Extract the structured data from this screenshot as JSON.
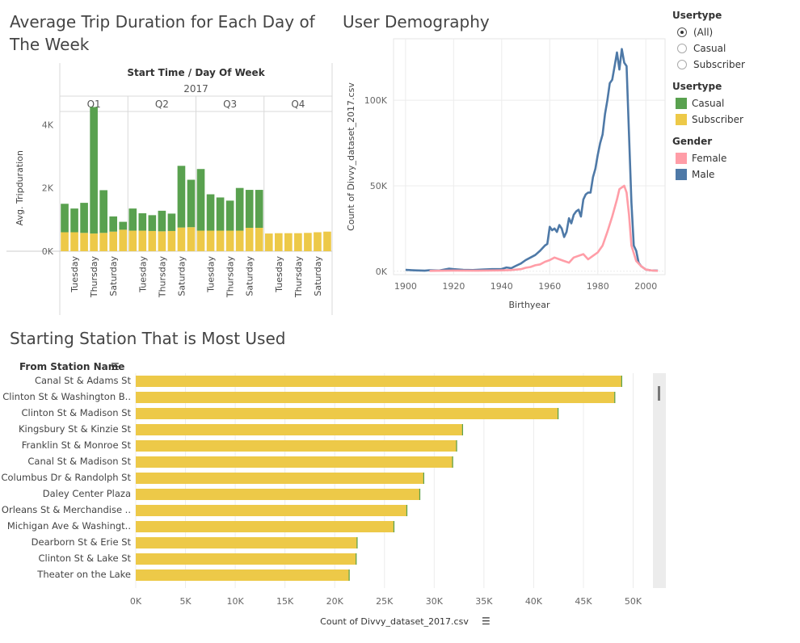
{
  "titles": {
    "avg_trip": "Average Trip Duration for Each Day of The Week",
    "demography": "User Demography",
    "station": "Starting Station That is Most Used"
  },
  "legend": {
    "usertype_filter": {
      "title": "Usertype",
      "options": [
        "(All)",
        "Casual",
        "Subscriber"
      ],
      "selected": "(All)"
    },
    "usertype_color": {
      "title": "Usertype",
      "items": [
        {
          "label": "Casual",
          "color": "#59a14f"
        },
        {
          "label": "Subscriber",
          "color": "#edc948"
        }
      ]
    },
    "gender_color": {
      "title": "Gender",
      "items": [
        {
          "label": "Female",
          "color": "#ff9da7"
        },
        {
          "label": "Male",
          "color": "#4e79a7"
        }
      ]
    }
  },
  "colors": {
    "casual": "#59a14f",
    "subscriber": "#edc948",
    "female": "#ff9da7",
    "male": "#4e79a7"
  },
  "chart_data": [
    {
      "type": "bar",
      "stacked": true,
      "header": "Start Time / Day Of Week",
      "year": "2017",
      "quarters": [
        "Q1",
        "Q2",
        "Q3",
        "Q4"
      ],
      "day_labels": [
        "Tuesday",
        "Thursday",
        "Saturday"
      ],
      "ylabel": "Avg. Tripduration",
      "yticks": [
        "0K",
        "2K",
        "4K"
      ],
      "ylim": [
        0,
        4700
      ],
      "series": [
        {
          "name": "Casual",
          "values": [
            [
              900,
              750,
              950,
              4000,
              1350,
              480,
              250
            ],
            [
              700,
              550,
              500,
              650,
              550,
              1950,
              1500
            ],
            [
              1950,
              1150,
              1050,
              950,
              1350,
              1200,
              1200
            ],
            [
              0,
              0,
              0,
              0,
              0,
              0,
              0
            ]
          ]
        },
        {
          "name": "Subscriber",
          "values": [
            [
              600,
              600,
              580,
              560,
              580,
              620,
              680
            ],
            [
              650,
              650,
              640,
              630,
              640,
              750,
              760
            ],
            [
              650,
              650,
              650,
              650,
              650,
              740,
              740
            ],
            [
              560,
              570,
              570,
              570,
              580,
              600,
              620
            ]
          ]
        }
      ]
    },
    {
      "type": "line",
      "xlabel": "Birthyear",
      "ylabel": "Count of Divvy_dataset_2017.csv",
      "xlim": [
        1895,
        2008
      ],
      "ylim": [
        -2000,
        136000
      ],
      "xticks": [
        "1900",
        "1920",
        "1940",
        "1960",
        "1980",
        "2000"
      ],
      "yticks": [
        "0K",
        "50K",
        "100K"
      ],
      "series": [
        {
          "name": "Male",
          "x": [
            1900,
            1904,
            1908,
            1910,
            1914,
            1918,
            1920,
            1924,
            1928,
            1932,
            1936,
            1940,
            1942,
            1944,
            1946,
            1948,
            1950,
            1952,
            1954,
            1956,
            1958,
            1959,
            1960,
            1961,
            1962,
            1963,
            1964,
            1965,
            1966,
            1967,
            1968,
            1969,
            1970,
            1971,
            1972,
            1973,
            1974,
            1975,
            1976,
            1977,
            1978,
            1979,
            1980,
            1981,
            1982,
            1983,
            1984,
            1985,
            1986,
            1987,
            1988,
            1989,
            1990,
            1991,
            1992,
            1993,
            1994,
            1995,
            1996,
            1997,
            1998,
            1999,
            2000,
            2002,
            2005
          ],
          "y": [
            800,
            500,
            300,
            600,
            400,
            1500,
            1200,
            800,
            700,
            1000,
            1200,
            1300,
            2200,
            1800,
            3200,
            4500,
            6500,
            8000,
            9500,
            12000,
            15000,
            16000,
            26000,
            24000,
            25000,
            23000,
            27000,
            25000,
            20000,
            23000,
            31000,
            28000,
            33000,
            35000,
            36000,
            32000,
            42000,
            45000,
            46000,
            46000,
            55000,
            60000,
            68000,
            75000,
            80000,
            92000,
            100000,
            110000,
            112000,
            120000,
            128000,
            118000,
            130000,
            122000,
            120000,
            80000,
            40000,
            15000,
            12000,
            5000,
            3000,
            2000,
            1000,
            500,
            300
          ]
        },
        {
          "name": "Female",
          "x": [
            1910,
            1920,
            1930,
            1940,
            1944,
            1948,
            1950,
            1952,
            1954,
            1956,
            1958,
            1960,
            1962,
            1964,
            1966,
            1968,
            1970,
            1972,
            1974,
            1976,
            1978,
            1980,
            1982,
            1984,
            1986,
            1988,
            1989,
            1990,
            1991,
            1992,
            1993,
            1994,
            1996,
            1998,
            2000,
            2002,
            2005
          ],
          "y": [
            200,
            400,
            300,
            500,
            700,
            1200,
            2000,
            2500,
            3500,
            4000,
            5500,
            6500,
            8000,
            7000,
            6000,
            5000,
            8000,
            9000,
            10000,
            7000,
            9000,
            11000,
            15000,
            23000,
            32000,
            42000,
            48000,
            49000,
            50000,
            46000,
            33000,
            15000,
            6000,
            3000,
            1000,
            500,
            200
          ]
        }
      ]
    },
    {
      "type": "bar",
      "orientation": "horizontal",
      "ylabel": "From Station Name",
      "xlabel": "Count of Divvy_dataset_2017.csv",
      "xlim": [
        0,
        51500
      ],
      "xticks": [
        "0K",
        "5K",
        "10K",
        "15K",
        "20K",
        "25K",
        "30K",
        "35K",
        "40K",
        "45K",
        "50K"
      ],
      "categories": [
        "Canal St & Adams St",
        "Clinton St & Washington B..",
        "Clinton St & Madison St",
        "Kingsbury St & Kinzie St",
        "Franklin St & Monroe St",
        "Canal St & Madison St",
        "Columbus Dr & Randolph St",
        "Daley Center Plaza",
        "Orleans St & Merchandise ..",
        "Michigan Ave & Washingt..",
        "Dearborn St & Erie St",
        "Clinton St & Lake St",
        "Theater on the Lake"
      ],
      "values": [
        48900,
        48200,
        42500,
        32900,
        32300,
        31900,
        29000,
        28600,
        27300,
        26000,
        22300,
        22200,
        21500
      ]
    }
  ]
}
